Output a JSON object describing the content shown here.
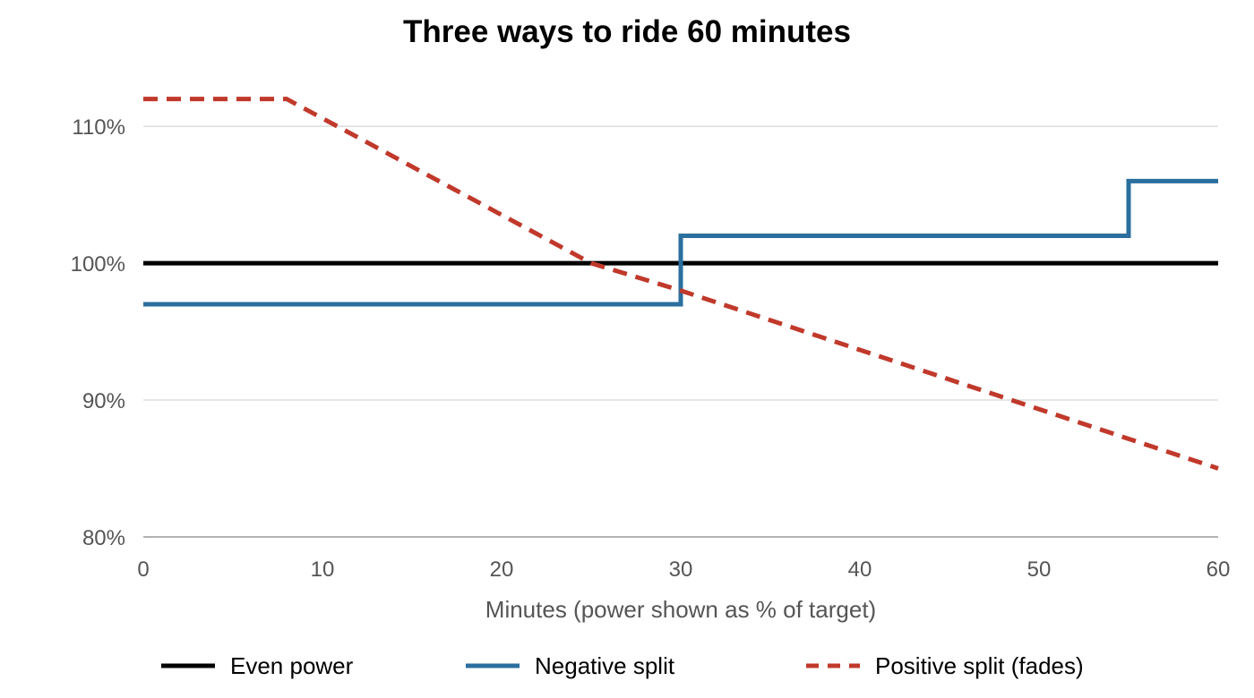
{
  "chart_data": {
    "type": "line",
    "title": "Three ways to ride 60 minutes",
    "xlabel": "Minutes (power shown as % of target)",
    "ylabel": "",
    "xlim": [
      0,
      60
    ],
    "ylim": [
      80,
      114
    ],
    "x_ticks": [
      0,
      10,
      20,
      30,
      40,
      50,
      60
    ],
    "x_tick_labels": [
      "0",
      "10",
      "20",
      "30",
      "40",
      "50",
      "60"
    ],
    "y_ticks": [
      80,
      90,
      100,
      110
    ],
    "y_tick_labels": [
      "80%",
      "90%",
      "100%",
      "110%"
    ],
    "grid": "horizontal",
    "legend_position": "bottom",
    "series": [
      {
        "name": "Even power",
        "color": "#000000",
        "line_style": "solid",
        "step": false,
        "points": [
          [
            0,
            100
          ],
          [
            60,
            100
          ]
        ]
      },
      {
        "name": "Negative split",
        "color": "#2a6f9e",
        "line_style": "solid",
        "step": true,
        "points": [
          [
            0,
            97
          ],
          [
            30,
            97
          ],
          [
            30,
            102
          ],
          [
            55,
            102
          ],
          [
            55,
            106
          ],
          [
            60,
            106
          ]
        ]
      },
      {
        "name": "Positive split (fades)",
        "color": "#c0392b",
        "line_style": "dashed",
        "step": false,
        "points": [
          [
            0,
            112
          ],
          [
            8,
            112
          ],
          [
            25,
            100
          ],
          [
            30,
            98
          ],
          [
            60,
            85
          ]
        ]
      }
    ]
  }
}
